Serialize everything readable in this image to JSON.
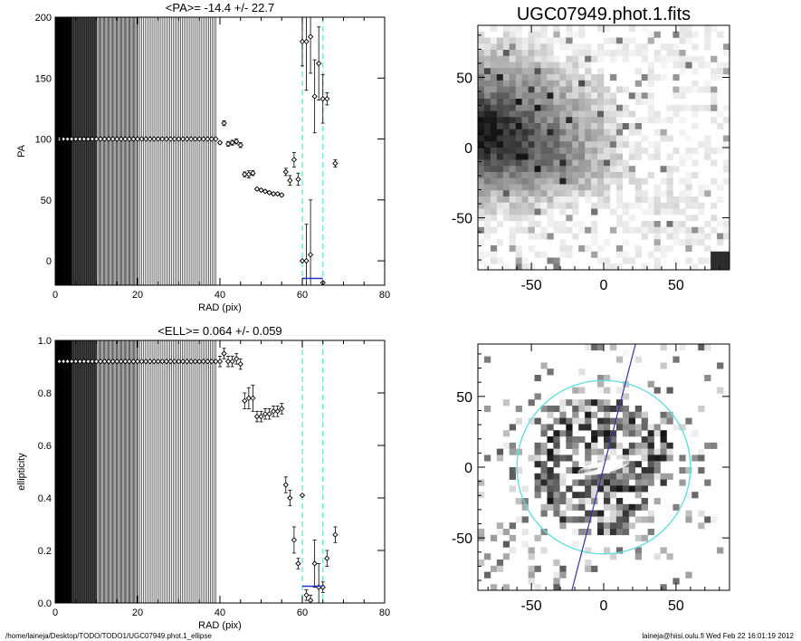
{
  "footer": {
    "path": "/home/laineja/Desktop/TODO/TODO1/UGC07949.phot.1_ellipse",
    "stamp": "laineja@hiisi.oulu.fi  Wed Feb 22 16:01:19 2012"
  },
  "chart_data": [
    {
      "type": "scatter",
      "title": "<PA>= -14.4 +/-  22.7",
      "xlabel": "RAD (pix)",
      "ylabel": "PA",
      "xlim": [
        0,
        80
      ],
      "ylim": [
        -20,
        200
      ],
      "xticks": [
        0,
        20,
        40,
        60,
        80
      ],
      "yticks": [
        0,
        50,
        100,
        150,
        200
      ],
      "vlines": [
        60,
        65
      ],
      "segment": {
        "x": [
          60,
          65
        ],
        "y": -14.4
      },
      "series": [
        {
          "x": [
            1,
            2,
            3,
            4,
            5,
            6,
            7,
            8,
            9,
            10,
            11,
            12,
            13,
            14,
            15,
            16,
            17,
            18,
            19,
            20,
            21,
            22,
            23,
            24,
            25,
            26,
            27,
            28,
            29,
            30,
            31,
            32,
            33,
            34,
            35,
            36,
            37,
            38,
            39
          ],
          "y": [
            100,
            100,
            100,
            100,
            100,
            100,
            100,
            100,
            100,
            100,
            100,
            100,
            100,
            100,
            100,
            100,
            100,
            100,
            100,
            100,
            100,
            100,
            100,
            100,
            100,
            100,
            100,
            100,
            100,
            100,
            100,
            100,
            100,
            100,
            100,
            100,
            100,
            100,
            100
          ],
          "err": [
            0,
            0,
            0,
            0,
            0,
            0,
            0,
            0,
            0,
            0,
            0,
            0,
            0,
            0,
            0,
            0,
            0,
            0,
            0,
            0,
            0,
            0,
            0,
            0,
            0,
            0,
            0,
            0,
            0,
            0,
            0,
            0,
            0,
            0,
            0,
            0,
            0,
            0,
            0
          ]
        },
        {
          "x": [
            40,
            41,
            42,
            43,
            44,
            45,
            46,
            47,
            48,
            49,
            50,
            51,
            52,
            53,
            54,
            55,
            56,
            57,
            58,
            59,
            60,
            61,
            62,
            63,
            64,
            65,
            66,
            68
          ],
          "y": [
            97,
            113,
            96,
            97,
            98,
            95,
            71,
            71,
            72,
            59,
            58,
            57,
            56,
            55,
            55,
            54,
            73,
            66,
            83,
            67,
            180,
            180,
            184,
            135,
            162,
            133,
            133,
            80
          ],
          "err": [
            1,
            2,
            2,
            2,
            2,
            2,
            2,
            3,
            2,
            1,
            1,
            1,
            1,
            1,
            1,
            1,
            3,
            4,
            6,
            5,
            20,
            40,
            30,
            30,
            30,
            20,
            5,
            3
          ]
        },
        {
          "x": [
            60,
            61,
            62,
            65
          ],
          "y": [
            0,
            0,
            5,
            -18
          ],
          "err": [
            0,
            30,
            45,
            0
          ]
        }
      ]
    },
    {
      "type": "scatter",
      "title": "<ELL>= 0.064 +/-  0.059",
      "xlabel": "RAD (pix)",
      "ylabel": "ellipticity",
      "xlim": [
        0,
        80
      ],
      "ylim": [
        0,
        1
      ],
      "xticks": [
        0,
        20,
        40,
        60,
        80
      ],
      "yticks": [
        "0.0",
        "0.2",
        "0.4",
        "0.6",
        "0.8",
        "1.0"
      ],
      "vlines": [
        60,
        65
      ],
      "segment": {
        "x": [
          60,
          65
        ],
        "y": 0.064
      },
      "series": [
        {
          "x": [
            1,
            2,
            3,
            4,
            5,
            6,
            7,
            8,
            9,
            10,
            11,
            12,
            13,
            14,
            15,
            16,
            17,
            18,
            19,
            20,
            21,
            22,
            23,
            24,
            25,
            26,
            27,
            28,
            29,
            30,
            31,
            32,
            33,
            34,
            35,
            36,
            37,
            38,
            39
          ],
          "y": [
            0.92,
            0.92,
            0.92,
            0.92,
            0.92,
            0.92,
            0.92,
            0.92,
            0.92,
            0.92,
            0.92,
            0.92,
            0.92,
            0.92,
            0.92,
            0.92,
            0.92,
            0.92,
            0.92,
            0.92,
            0.92,
            0.92,
            0.92,
            0.92,
            0.92,
            0.92,
            0.92,
            0.92,
            0.92,
            0.92,
            0.92,
            0.92,
            0.92,
            0.92,
            0.92,
            0.92,
            0.92,
            0.92,
            0.92
          ],
          "err": [
            0,
            0,
            0,
            0,
            0,
            0,
            0,
            0,
            0,
            0,
            0,
            0,
            0,
            0,
            0,
            0,
            0,
            0,
            0,
            0,
            0,
            0,
            0,
            0,
            0,
            0,
            0,
            0,
            0,
            0,
            0,
            0,
            0,
            0,
            0,
            0,
            0,
            0,
            0
          ]
        },
        {
          "x": [
            40,
            41,
            42,
            43,
            44,
            45,
            46,
            47,
            48,
            49,
            50,
            51,
            52,
            53,
            54,
            55,
            56,
            57,
            58,
            59,
            60,
            61,
            62,
            63,
            64,
            65,
            66,
            68
          ],
          "y": [
            0.92,
            0.95,
            0.92,
            0.92,
            0.93,
            0.91,
            0.77,
            0.78,
            0.78,
            0.71,
            0.71,
            0.72,
            0.72,
            0.73,
            0.73,
            0.74,
            0.45,
            0.4,
            0.24,
            0.15,
            0.41,
            0.03,
            0.01,
            0.15,
            0.06,
            0.06,
            0.17,
            0.26
          ],
          "err": [
            0.02,
            0.02,
            0.02,
            0.02,
            0.02,
            0.02,
            0.03,
            0.04,
            0.05,
            0.02,
            0.02,
            0.02,
            0.02,
            0.02,
            0.02,
            0.02,
            0.03,
            0.03,
            0.05,
            0.02,
            0.0,
            0.02,
            0.02,
            0.09,
            0.09,
            0.02,
            0.03,
            0.03
          ]
        }
      ]
    },
    {
      "type": "heatmap",
      "title": "UGC07949.phot.1.fits",
      "xlim": [
        -87,
        87
      ],
      "ylim": [
        -87,
        87
      ],
      "xticks": [
        -50,
        0,
        50
      ],
      "yticks": [
        -50,
        0,
        50
      ]
    },
    {
      "type": "heatmap",
      "title": "",
      "xlim": [
        -87,
        87
      ],
      "ylim": [
        -87,
        87
      ],
      "xticks": [
        -50,
        0,
        50
      ],
      "yticks": [
        -50,
        0,
        50
      ],
      "circle": {
        "center": [
          0,
          0
        ],
        "radius": 60
      },
      "line": {
        "x": [
          -22,
          22
        ],
        "y": [
          -87,
          87
        ]
      },
      "colors": {
        "circle": "#66dddd",
        "line": "#3333aa"
      }
    }
  ],
  "colors": {
    "guide": "#66dddd",
    "segment": "#2233cc"
  }
}
